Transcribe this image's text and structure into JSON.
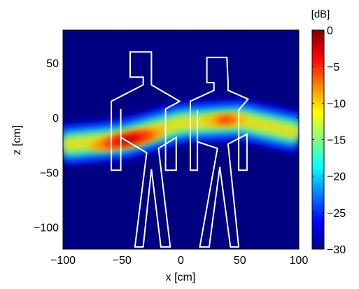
{
  "chart_data": {
    "type": "heatmap",
    "title": "",
    "xlabel": "x [cm]",
    "ylabel": "z [cm]",
    "xlim": [
      -100,
      100
    ],
    "ylim": [
      -120,
      80
    ],
    "x_ticks": [
      -100,
      -50,
      0,
      50,
      100
    ],
    "x_tick_labels": [
      "−100",
      "−50",
      "0",
      "50",
      "100"
    ],
    "y_ticks": [
      50,
      0,
      -50,
      -100
    ],
    "y_tick_labels": [
      "50",
      "0",
      "−50",
      "−100"
    ],
    "grid": false,
    "colorbar": {
      "label": "[dB]",
      "range": [
        -30,
        0
      ],
      "ticks": [
        0,
        -5,
        -10,
        -15,
        -20,
        -25,
        -30
      ],
      "tick_labels": [
        "0",
        "−5",
        "−10",
        "−15",
        "−20",
        "−25",
        "−30"
      ],
      "colormap": "jet"
    },
    "background_level_db": -30,
    "beam": {
      "centerline": [
        {
          "x": -100,
          "z": -25
        },
        {
          "x": -50,
          "z": -20
        },
        {
          "x": 0,
          "z": -5
        },
        {
          "x": 50,
          "z": -2
        },
        {
          "x": 100,
          "z": -14
        }
      ],
      "peaks": [
        {
          "x": -45,
          "z": -20,
          "level_db": -1
        },
        {
          "x": 38,
          "z": -2,
          "level_db": -4
        }
      ]
    },
    "overlays": [
      {
        "name": "person-left",
        "outline_color": "#ffffff",
        "outline": [
          [
            -25,
            60
          ],
          [
            -43,
            60
          ],
          [
            -43,
            37
          ],
          [
            -32,
            37
          ],
          [
            -32,
            30
          ],
          [
            -59,
            15
          ],
          [
            -59,
            -48
          ],
          [
            -51,
            -48
          ],
          [
            -51,
            8
          ],
          [
            -51,
            -18
          ],
          [
            -29,
            -32
          ],
          [
            -39,
            -118
          ],
          [
            -32,
            -118
          ],
          [
            -25,
            -47
          ],
          [
            -17,
            -118
          ],
          [
            -9,
            -118
          ],
          [
            -19,
            -28
          ],
          [
            -4,
            -18
          ],
          [
            -4,
            -48
          ],
          [
            -13,
            -48
          ],
          [
            -13,
            8
          ],
          [
            -1,
            15
          ],
          [
            -1,
            15
          ],
          [
            -25,
            30
          ],
          [
            -25,
            37
          ],
          [
            -25,
            60
          ]
        ]
      },
      {
        "name": "person-right",
        "outline_color": "#ffffff",
        "outline": [
          [
            39,
            55
          ],
          [
            22,
            55
          ],
          [
            22,
            32
          ],
          [
            28,
            32
          ],
          [
            28,
            25
          ],
          [
            8,
            15
          ],
          [
            8,
            -48
          ],
          [
            14,
            -48
          ],
          [
            14,
            7
          ],
          [
            14,
            -22
          ],
          [
            31,
            -28
          ],
          [
            16,
            -118
          ],
          [
            24,
            -118
          ],
          [
            33,
            -45
          ],
          [
            42,
            -118
          ],
          [
            49,
            -118
          ],
          [
            40,
            -24
          ],
          [
            56,
            -15
          ],
          [
            56,
            -48
          ],
          [
            49,
            -48
          ],
          [
            49,
            7
          ],
          [
            57,
            17
          ],
          [
            57,
            17
          ],
          [
            40,
            25
          ],
          [
            40,
            32
          ],
          [
            39,
            55
          ]
        ]
      }
    ]
  }
}
